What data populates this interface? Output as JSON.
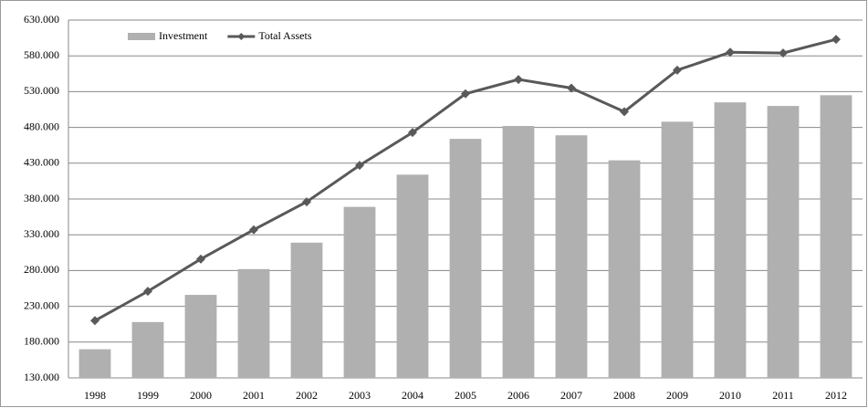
{
  "chart_data": {
    "type": "bar_line",
    "categories": [
      "1998",
      "1999",
      "2000",
      "2001",
      "2002",
      "2003",
      "2004",
      "2005",
      "2006",
      "2007",
      "2008",
      "2009",
      "2010",
      "2011",
      "2012"
    ],
    "series": [
      {
        "name": "Investment",
        "type": "bar",
        "color": "#b0b0b0",
        "values": [
          170000,
          208000,
          246000,
          282000,
          319000,
          369000,
          414000,
          464000,
          482000,
          469000,
          434000,
          488000,
          515000,
          510000,
          525000
        ]
      },
      {
        "name": "Total Assets",
        "type": "line",
        "color": "#595959",
        "values": [
          210000,
          251000,
          296000,
          337000,
          376000,
          427000,
          473000,
          527000,
          547000,
          535000,
          502000,
          560000,
          585000,
          584000,
          603000
        ]
      }
    ],
    "ylim": [
      130000,
      630000
    ],
    "yticks": [
      {
        "value": 130000,
        "label": "130.000"
      },
      {
        "value": 180000,
        "label": "180.000"
      },
      {
        "value": 230000,
        "label": "230.000"
      },
      {
        "value": 280000,
        "label": "280.000"
      },
      {
        "value": 330000,
        "label": "330.000"
      },
      {
        "value": 380000,
        "label": "380.000"
      },
      {
        "value": 430000,
        "label": "430.000"
      },
      {
        "value": 480000,
        "label": "480.000"
      },
      {
        "value": 530000,
        "label": "530.000"
      },
      {
        "value": 580000,
        "label": "580.000"
      },
      {
        "value": 630000,
        "label": "630.000"
      }
    ],
    "grid": true,
    "legend": "upper left"
  }
}
